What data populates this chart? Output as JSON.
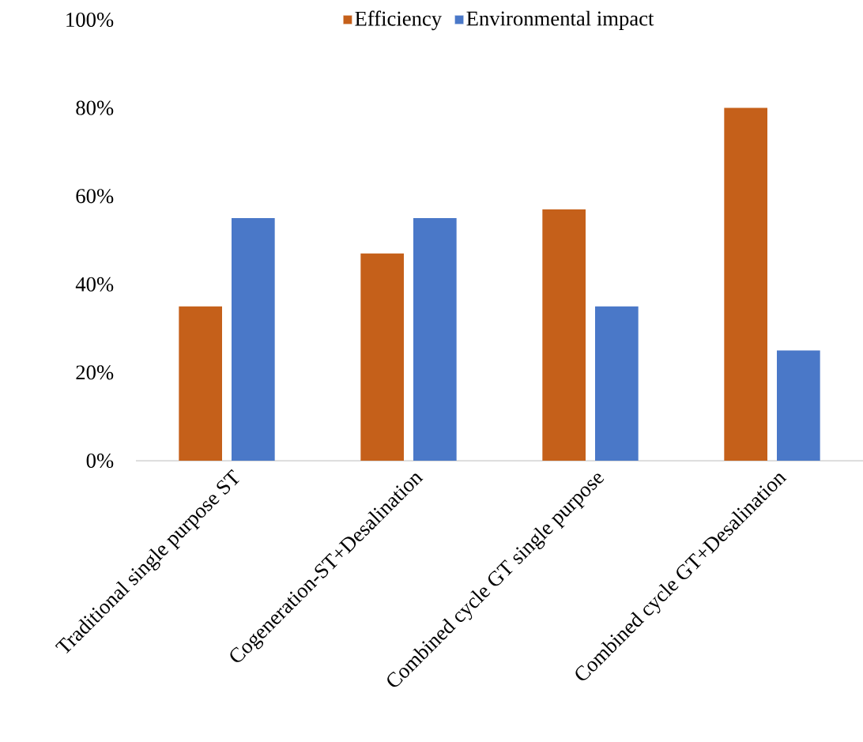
{
  "chart_data": {
    "type": "bar",
    "categories": [
      "Traditional single purpose ST",
      "Cogeneration-ST+Desalination",
      "Combined cycle GT single purpose",
      "Combined cycle GT+Desalination"
    ],
    "series": [
      {
        "name": "Efficiency",
        "color": "#c5601a",
        "values": [
          35,
          47,
          57,
          80
        ]
      },
      {
        "name": "Environmental impact",
        "color": "#4a78c8",
        "values": [
          55,
          55,
          35,
          25
        ]
      }
    ],
    "ylim": [
      0,
      100
    ],
    "yticks": [
      {
        "value": 0,
        "label": "0%"
      },
      {
        "value": 20,
        "label": "20%"
      },
      {
        "value": 40,
        "label": "40%"
      },
      {
        "value": 60,
        "label": "60%"
      },
      {
        "value": 80,
        "label": "80%"
      },
      {
        "value": 100,
        "label": "100%"
      }
    ],
    "legend": "top"
  }
}
